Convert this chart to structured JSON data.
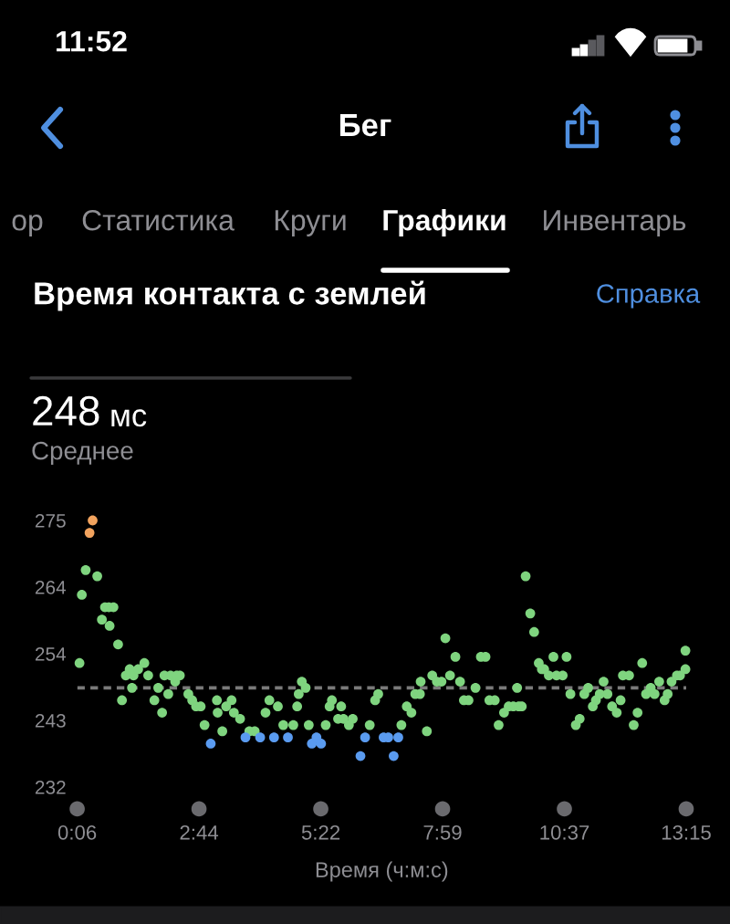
{
  "chart_data": {
    "type": "scatter",
    "title": "Время контакта с землей",
    "xlabel": "Время (ч:м:с)",
    "marker": "circle",
    "xlim": [
      6,
      795
    ],
    "xticks": [
      {
        "value": 6,
        "label": "0:06"
      },
      {
        "value": 163.8,
        "label": "2:44"
      },
      {
        "value": 321.6,
        "label": "5:22"
      },
      {
        "value": 479.4,
        "label": "7:59"
      },
      {
        "value": 637.2,
        "label": "10:37"
      },
      {
        "value": 795,
        "label": "13:15"
      }
    ],
    "ylim": [
      232,
      275
    ],
    "yticks": [
      232,
      {
        "value": 242.75,
        "label": "243"
      },
      {
        "value": 253.5,
        "label": "254"
      },
      {
        "value": 264.25,
        "label": "264"
      },
      275
    ],
    "ref_lines": [
      {
        "axis": "y",
        "value": 248,
        "color": "#7a7a7a",
        "line_style": "dashed"
      }
    ],
    "series": [
      {
        "color": "#f2a35e",
        "x": [
          22,
          26
        ],
        "values": [
          273,
          275
        ]
      },
      {
        "color": "#7fd47f",
        "x": [
          9,
          12,
          17,
          32,
          38,
          42,
          47,
          48,
          53,
          59,
          64,
          69,
          74,
          77,
          79,
          85,
          93,
          98,
          106,
          111,
          116,
          119,
          124,
          127,
          133,
          135,
          139,
          150,
          155,
          160,
          166,
          171,
          187,
          188,
          194,
          199,
          206,
          209,
          217,
          229,
          236,
          250,
          255,
          266,
          273,
          286,
          291,
          293,
          297,
          302,
          306,
          328,
          333,
          336,
          344,
          348,
          351,
          358,
          363,
          385,
          392,
          396,
          426,
          433,
          439,
          444,
          450,
          451,
          459,
          466,
          472,
          478,
          483,
          489,
          496,
          502,
          507,
          513,
          522,
          529,
          535,
          540,
          547,
          552,
          559,
          565,
          571,
          576,
          578,
          582,
          587,
          593,
          598,
          604,
          608,
          611,
          617,
          623,
          627,
          635,
          640,
          645,
          652,
          657,
          663,
          668,
          674,
          678,
          683,
          688,
          693,
          699,
          705,
          710,
          713,
          721,
          727,
          732,
          738,
          743,
          749,
          754,
          760,
          767,
          771,
          776,
          783,
          787,
          794,
          794
        ],
        "values": [
          252,
          263,
          267,
          266,
          259,
          261,
          261,
          258,
          261,
          255,
          246,
          250,
          251,
          248,
          250,
          251,
          252,
          250,
          246,
          248,
          244,
          250,
          247,
          250,
          249,
          250,
          250,
          247,
          246,
          245,
          245,
          242,
          246,
          244,
          241,
          245,
          246,
          244,
          243,
          241,
          241,
          244,
          246,
          245,
          242,
          242,
          245,
          247,
          249,
          248,
          242,
          242,
          245,
          246,
          243,
          245,
          243,
          242,
          243,
          242,
          246,
          247,
          242,
          245,
          244,
          247,
          247,
          249,
          241,
          250,
          249,
          249,
          256,
          250,
          253,
          249,
          246,
          246,
          248,
          253,
          253,
          246,
          246,
          242,
          244,
          245,
          245,
          248,
          245,
          245,
          266,
          260,
          257,
          252,
          251,
          251,
          250,
          253,
          250,
          250,
          253,
          247,
          242,
          243,
          247,
          248,
          245,
          246,
          247,
          249,
          247,
          245,
          244,
          246,
          250,
          250,
          242,
          244,
          252,
          247,
          248,
          247,
          249,
          246,
          247,
          249,
          250,
          250,
          251,
          254
        ]
      },
      {
        "color": "#5a9bf0",
        "x": [
          179,
          224,
          243,
          261,
          279,
          310,
          316,
          322,
          373,
          379,
          403,
          409,
          416,
          422
        ],
        "values": [
          239,
          240,
          240,
          240,
          240,
          239,
          240,
          239,
          237,
          240,
          240,
          240,
          237,
          240
        ]
      }
    ],
    "annotations": [
      "11:52",
      "Бег",
      "ор",
      "Статистика",
      "Круги",
      "Графики",
      "Инвентарь",
      "Справка",
      "248",
      "мс",
      "Среднее"
    ]
  }
}
